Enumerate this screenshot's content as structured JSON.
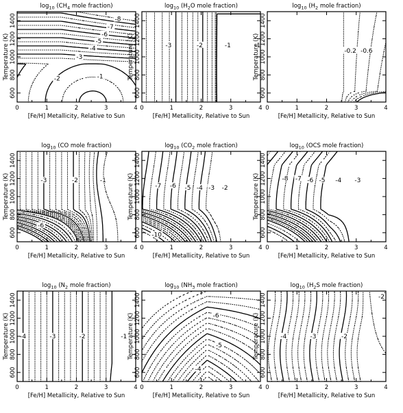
{
  "figure": {
    "xlabel": "[Fe/H] Metallicity, Relative to Sun",
    "ylabel": "Temperature (K)"
  },
  "chart_data": [
    {
      "type": "contour",
      "title": "log10 (CH4 mole fraction)",
      "title_parts": [
        "log",
        "10",
        " (CH",
        "4",
        " mole fraction)"
      ],
      "xlabel": "[Fe/H] Metallicity, Relative to Sun",
      "ylabel": "Temperature (K)",
      "xlim": [
        0,
        4
      ],
      "ylim": [
        500,
        1500
      ],
      "xticks": [
        "0",
        "1",
        "2",
        "3",
        "4"
      ],
      "yticks": [
        "600",
        "800",
        "1000",
        "1200",
        "1400"
      ],
      "contour_labels": [
        {
          "text": "-8",
          "x": 3.4,
          "y": 1420
        },
        {
          "text": "-7",
          "x": 3.15,
          "y": 1335
        },
        {
          "text": "-6",
          "x": 2.95,
          "y": 1250
        },
        {
          "text": "-5",
          "x": 2.75,
          "y": 1175
        },
        {
          "text": "-4",
          "x": 2.55,
          "y": 1095
        },
        {
          "text": "-3",
          "x": 2.1,
          "y": 1000
        },
        {
          "text": "-2",
          "x": 1.35,
          "y": 760
        },
        {
          "text": "-1",
          "x": 2.8,
          "y": 785
        }
      ]
    },
    {
      "type": "contour",
      "title": "log10 (H2O mole fraction)",
      "title_parts": [
        "log",
        "10",
        " (H",
        "2",
        "O mole fraction)"
      ],
      "xlabel": "[Fe/H] Metallicity, Relative to Sun",
      "ylabel": "Temperature (K)",
      "xlim": [
        0,
        4
      ],
      "ylim": [
        500,
        1500
      ],
      "xticks": [
        "0",
        "1",
        "2",
        "3",
        "4"
      ],
      "yticks": [
        "600",
        "800",
        "1000",
        "1200",
        "1400"
      ],
      "contour_labels": [
        {
          "text": "-3",
          "x": 0.9,
          "y": 1130
        },
        {
          "text": "-2",
          "x": 1.95,
          "y": 1130
        },
        {
          "text": "-1",
          "x": 2.9,
          "y": 1130
        },
        {
          "text": "-1",
          "x": 3.9,
          "y": 1130
        }
      ]
    },
    {
      "type": "contour",
      "title": "log10 (H2 mole fraction)",
      "title_parts": [
        "log",
        "10",
        " (H",
        "2",
        " mole fraction)"
      ],
      "xlabel": "[Fe/H] Metallicity, Relative to Sun",
      "ylabel": "Temperature (K)",
      "xlim": [
        0,
        4
      ],
      "ylim": [
        500,
        1500
      ],
      "xticks": [
        "0",
        "1",
        "2",
        "3",
        "4"
      ],
      "yticks": [
        "600",
        "800",
        "1000",
        "1200",
        "1400"
      ],
      "contour_labels": [
        {
          "text": "-0.2",
          "x": 2.8,
          "y": 1070
        },
        {
          "text": "-0.6",
          "x": 3.35,
          "y": 1070
        }
      ]
    },
    {
      "type": "contour",
      "title": "log10 (CO mole fraction)",
      "title_parts": [
        "log",
        "10",
        " (CO mole fraction)"
      ],
      "xlabel": "[Fe/H] Metallicity, Relative to Sun",
      "ylabel": "Temperature (K)",
      "xlim": [
        0,
        4
      ],
      "ylim": [
        500,
        1500
      ],
      "xticks": [
        "0",
        "1",
        "2",
        "3",
        "4"
      ],
      "yticks": [
        "600",
        "800",
        "1000",
        "1200",
        "1400"
      ],
      "contour_labels": [
        {
          "text": "-3",
          "x": 0.9,
          "y": 1180
        },
        {
          "text": "-2",
          "x": 1.95,
          "y": 1180
        },
        {
          "text": "-1",
          "x": 2.9,
          "y": 1180
        },
        {
          "text": "-6",
          "x": 0.8,
          "y": 680
        }
      ]
    },
    {
      "type": "contour",
      "title": "log10 (CO2 mole fraction)",
      "title_parts": [
        "log",
        "10",
        " (CO",
        "2",
        " mole fraction)"
      ],
      "xlabel": "[Fe/H] Metallicity, Relative to Sun",
      "ylabel": "Temperature (K)",
      "xlim": [
        0,
        4
      ],
      "ylim": [
        500,
        1500
      ],
      "xticks": [
        "0",
        "1",
        "2",
        "3",
        "4"
      ],
      "yticks": [
        "600",
        "800",
        "1000",
        "1200",
        "1400"
      ],
      "contour_labels": [
        {
          "text": "-7",
          "x": 0.55,
          "y": 1120
        },
        {
          "text": "-6",
          "x": 1.05,
          "y": 1120
        },
        {
          "text": "-5",
          "x": 1.55,
          "y": 1100
        },
        {
          "text": "-4",
          "x": 1.95,
          "y": 1100
        },
        {
          "text": "-3",
          "x": 2.35,
          "y": 1100
        },
        {
          "text": "-2",
          "x": 2.8,
          "y": 1100
        },
        {
          "text": "-10",
          "x": 0.5,
          "y": 580
        }
      ]
    },
    {
      "type": "contour",
      "title": "log10 (OCS mole fraction)",
      "title_parts": [
        "log",
        "10",
        " (OCS mole fraction)"
      ],
      "xlabel": "[Fe/H] Metallicity, Relative to Sun",
      "ylabel": "Temperature (K)",
      "xlim": [
        0,
        4
      ],
      "ylim": [
        500,
        1500
      ],
      "xticks": [
        "0",
        "1",
        "2",
        "3",
        "4"
      ],
      "yticks": [
        "600",
        "800",
        "1000",
        "1200",
        "1400"
      ],
      "contour_labels": [
        {
          "text": "-8",
          "x": 0.6,
          "y": 1200
        },
        {
          "text": "-7",
          "x": 1.05,
          "y": 1200
        },
        {
          "text": "-6",
          "x": 1.45,
          "y": 1180
        },
        {
          "text": "-5",
          "x": 1.85,
          "y": 1180
        },
        {
          "text": "-4",
          "x": 2.4,
          "y": 1180
        },
        {
          "text": "-3",
          "x": 3.05,
          "y": 1180
        }
      ]
    },
    {
      "type": "contour",
      "title": "log10 (N2 mole fraction)",
      "title_parts": [
        "log",
        "10",
        " (N",
        "2",
        " mole fraction)"
      ],
      "xlabel": "[Fe/H] Metallicity, Relative to Sun",
      "ylabel": "Temperature (K)",
      "xlim": [
        0,
        4
      ],
      "ylim": [
        500,
        1500
      ],
      "xticks": [
        "0",
        "1",
        "2",
        "3",
        "4"
      ],
      "yticks": [
        "600",
        "800",
        "1000",
        "1200",
        "1400"
      ],
      "contour_labels": [
        {
          "text": "-4",
          "x": 0.2,
          "y": 1000
        },
        {
          "text": "-3",
          "x": 1.2,
          "y": 1000
        },
        {
          "text": "-2",
          "x": 2.2,
          "y": 1000
        },
        {
          "text": "-1",
          "x": 3.6,
          "y": 1000
        }
      ]
    },
    {
      "type": "contour",
      "title": "log10 (NH3 mole fraction)",
      "title_parts": [
        "log",
        "10",
        " (NH",
        "3",
        " mole fraction)"
      ],
      "xlabel": "[Fe/H] Metallicity, Relative to Sun",
      "ylabel": "Temperature (K)",
      "xlim": [
        0,
        4
      ],
      "ylim": [
        500,
        1500
      ],
      "xticks": [
        "0",
        "1",
        "2",
        "3",
        "4"
      ],
      "yticks": [
        "600",
        "800",
        "1000",
        "1200",
        "1400"
      ],
      "contour_labels": [
        {
          "text": "-6",
          "x": 2.5,
          "y": 1230
        },
        {
          "text": "-5",
          "x": 2.6,
          "y": 900
        },
        {
          "text": "-4",
          "x": 1.9,
          "y": 640
        }
      ]
    },
    {
      "type": "contour",
      "title": "log10 (H2S mole fraction)",
      "title_parts": [
        "log",
        "10",
        " (H",
        "2",
        "S mole fraction)"
      ],
      "xlabel": "[Fe/H] Metallicity, Relative to Sun",
      "ylabel": "Temperature (K)",
      "xlim": [
        0,
        4
      ],
      "ylim": [
        500,
        1500
      ],
      "xticks": [
        "0",
        "1",
        "2",
        "3",
        "4"
      ],
      "yticks": [
        "600",
        "800",
        "1000",
        "1200",
        "1400"
      ],
      "contour_labels": [
        {
          "text": "-4",
          "x": 0.55,
          "y": 1000
        },
        {
          "text": "-3",
          "x": 1.55,
          "y": 1000
        },
        {
          "text": "-2",
          "x": 2.6,
          "y": 1000
        },
        {
          "text": "-2",
          "x": 3.85,
          "y": 1440
        }
      ]
    }
  ]
}
